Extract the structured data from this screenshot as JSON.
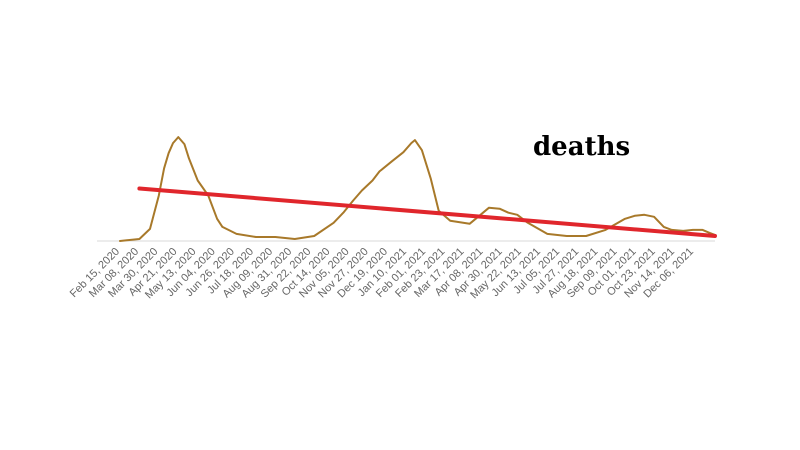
{
  "chart_data": {
    "type": "line",
    "title": "deaths",
    "xlabel": "",
    "ylabel": "",
    "x_tick_labels": [
      "Feb 15, 2020",
      "Mar 08, 2020",
      "Mar 30, 2020",
      "Apr 21, 2020",
      "May 13, 2020",
      "Jun 04, 2020",
      "Jun 26, 2020",
      "Jul 18, 2020",
      "Aug 09, 2020",
      "Aug 31, 2020",
      "Sep 22, 2020",
      "Oct 14, 2020",
      "Nov 05, 2020",
      "Nov 27, 2020",
      "Dec 19, 2020",
      "Jan 10, 2021",
      "Feb 01, 2021",
      "Feb 23, 2021",
      "Mar 17, 2021",
      "Apr 08, 2021",
      "Apr 30, 2021",
      "May 22, 2021",
      "Jun 13, 2021",
      "Jul 05, 2021",
      "Jul 27, 2021",
      "Aug 18, 2021",
      "Sep 09, 2021",
      "Oct 01, 2021",
      "Oct 23, 2021",
      "Nov 14, 2021",
      "Dec 06, 2021"
    ],
    "ylim": [
      0,
      110
    ],
    "grid": false,
    "series": [
      {
        "color": "#a8792a",
        "x": [
          "2020-02-15",
          "2020-03-08",
          "2020-03-20",
          "2020-03-30",
          "2020-04-05",
          "2020-04-10",
          "2020-04-15",
          "2020-04-21",
          "2020-04-28",
          "2020-05-03",
          "2020-05-13",
          "2020-05-25",
          "2020-06-04",
          "2020-06-10",
          "2020-06-26",
          "2020-07-18",
          "2020-08-09",
          "2020-08-31",
          "2020-09-22",
          "2020-10-14",
          "2020-10-25",
          "2020-11-05",
          "2020-11-15",
          "2020-11-27",
          "2020-12-05",
          "2020-12-19",
          "2021-01-01",
          "2021-01-10",
          "2021-01-14",
          "2021-01-22",
          "2021-02-01",
          "2021-02-10",
          "2021-02-23",
          "2021-03-17",
          "2021-03-28",
          "2021-04-08",
          "2021-04-20",
          "2021-04-30",
          "2021-05-10",
          "2021-05-22",
          "2021-06-13",
          "2021-07-05",
          "2021-07-27",
          "2021-08-18",
          "2021-09-09",
          "2021-09-20",
          "2021-10-01",
          "2021-10-12",
          "2021-10-23",
          "2021-11-01",
          "2021-11-14",
          "2021-11-25",
          "2021-12-06",
          "2021-12-14",
          "2021-12-20"
        ],
        "values": [
          0,
          2,
          12,
          45,
          72,
          87,
          97,
          103,
          96,
          82,
          60,
          45,
          22,
          14,
          7,
          4,
          4,
          2,
          5,
          18,
          28,
          40,
          50,
          60,
          69,
          79,
          88,
          97,
          100,
          90,
          62,
          30,
          20,
          17,
          25,
          33,
          32,
          28,
          26,
          18,
          7,
          5,
          5,
          11,
          22,
          25,
          26,
          24,
          14,
          11,
          10,
          11,
          11,
          8,
          6
        ]
      },
      {
        "color": "#e0262c",
        "x": [
          "2020-03-08",
          "2021-12-20"
        ],
        "values": [
          52,
          5
        ]
      }
    ]
  }
}
